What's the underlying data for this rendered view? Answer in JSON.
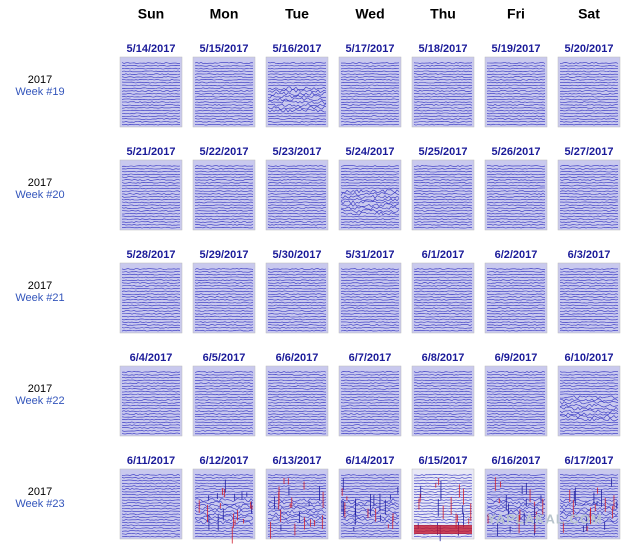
{
  "days": [
    "Sun",
    "Mon",
    "Tue",
    "Wed",
    "Thu",
    "Fri",
    "Sat"
  ],
  "weeks": [
    {
      "year": "2017",
      "week": "Week #19",
      "dates": [
        "5/14/2017",
        "5/15/2017",
        "5/16/2017",
        "5/17/2017",
        "5/18/2017",
        "5/19/2017",
        "5/20/2017"
      ]
    },
    {
      "year": "2017",
      "week": "Week #20",
      "dates": [
        "5/21/2017",
        "5/22/2017",
        "5/23/2017",
        "5/24/2017",
        "5/25/2017",
        "5/26/2017",
        "5/27/2017"
      ]
    },
    {
      "year": "2017",
      "week": "Week #21",
      "dates": [
        "5/28/2017",
        "5/29/2017",
        "5/30/2017",
        "5/31/2017",
        "6/1/2017",
        "6/2/2017",
        "6/3/2017"
      ]
    },
    {
      "year": "2017",
      "week": "Week #22",
      "dates": [
        "6/4/2017",
        "6/5/2017",
        "6/6/2017",
        "6/7/2017",
        "6/8/2017",
        "6/9/2017",
        "6/10/2017"
      ]
    },
    {
      "year": "2017",
      "week": "Week #23",
      "dates": [
        "6/11/2017",
        "6/12/2017",
        "6/13/2017",
        "6/14/2017",
        "6/15/2017",
        "6/16/2017",
        "6/17/2017"
      ]
    }
  ],
  "watermark": "YAPLAKAL.COM"
}
